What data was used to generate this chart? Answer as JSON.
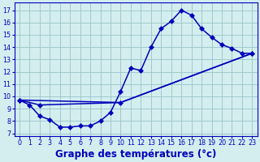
{
  "background_color": "#d4eef0",
  "grid_color": "#a0c8cc",
  "line_color": "#0000bb",
  "xlabel": "Graphe des températures (°c)",
  "xlabel_fontsize": 8.5,
  "xlim": [
    -0.5,
    23.5
  ],
  "ylim": [
    6.8,
    17.6
  ],
  "yticks": [
    7,
    8,
    9,
    10,
    11,
    12,
    13,
    14,
    15,
    16,
    17
  ],
  "xticks": [
    0,
    1,
    2,
    3,
    4,
    5,
    6,
    7,
    8,
    9,
    10,
    11,
    12,
    13,
    14,
    15,
    16,
    17,
    18,
    19,
    20,
    21,
    22,
    23
  ],
  "curve_temp_x": [
    0,
    1,
    2,
    3,
    4,
    5,
    6,
    7,
    8,
    9,
    10,
    11,
    12,
    13,
    14,
    15,
    16,
    17,
    18,
    19,
    20,
    21,
    22,
    23
  ],
  "curve_temp_y": [
    9.7,
    9.3,
    8.4,
    8.1,
    7.5,
    7.5,
    7.6,
    7.6,
    8.0,
    8.7,
    10.4,
    12.3,
    12.1,
    14.0,
    15.5,
    16.1,
    17.0,
    16.6,
    15.5,
    14.8,
    14.2,
    13.9,
    13.5,
    13.5
  ],
  "curve_line1_x": [
    0,
    2,
    10,
    23
  ],
  "curve_line1_y": [
    9.7,
    9.3,
    9.5,
    13.5
  ],
  "curve_line2_x": [
    0,
    10,
    23
  ],
  "curve_line2_y": [
    9.7,
    9.5,
    13.5
  ],
  "marker": "D",
  "markersize": 3,
  "linewidth": 1.1
}
